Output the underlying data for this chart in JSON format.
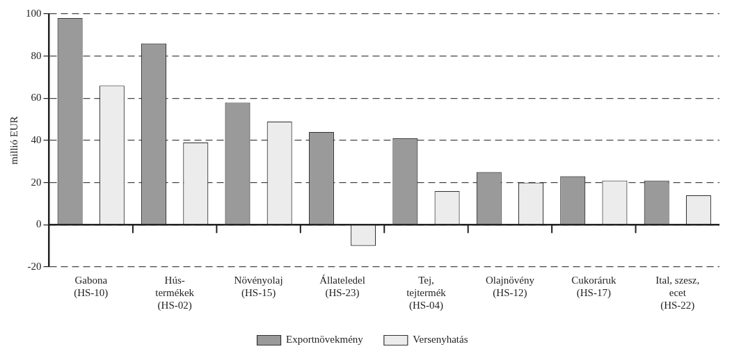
{
  "chart_data": {
    "type": "bar",
    "ylabel": "millió EUR",
    "categories": [
      "Gabona\n(HS-10)",
      "Hús-\ntermékek\n(HS-02)",
      "Növényolaj\n(HS-15)",
      "Állateledel\n(HS-23)",
      "Tej,\ntejtermék\n(HS-04)",
      "Olajnövény\n(HS-12)",
      "Cukoráruk\n(HS-17)",
      "Ital, szesz,\necet\n(HS-22)"
    ],
    "series": [
      {
        "name": "Exportnövekmény",
        "color": "#9a9a9a",
        "values": [
          98,
          86,
          58,
          44,
          41,
          25,
          23,
          21
        ]
      },
      {
        "name": "Versenyhatás",
        "color": "#ececec",
        "values": [
          66,
          39,
          49,
          -10,
          16,
          20,
          21,
          14
        ]
      }
    ],
    "ylim": [
      -20,
      100
    ],
    "yticks": [
      -20,
      0,
      20,
      40,
      60,
      80,
      100
    ],
    "grid": "y",
    "legend": "bottom"
  }
}
